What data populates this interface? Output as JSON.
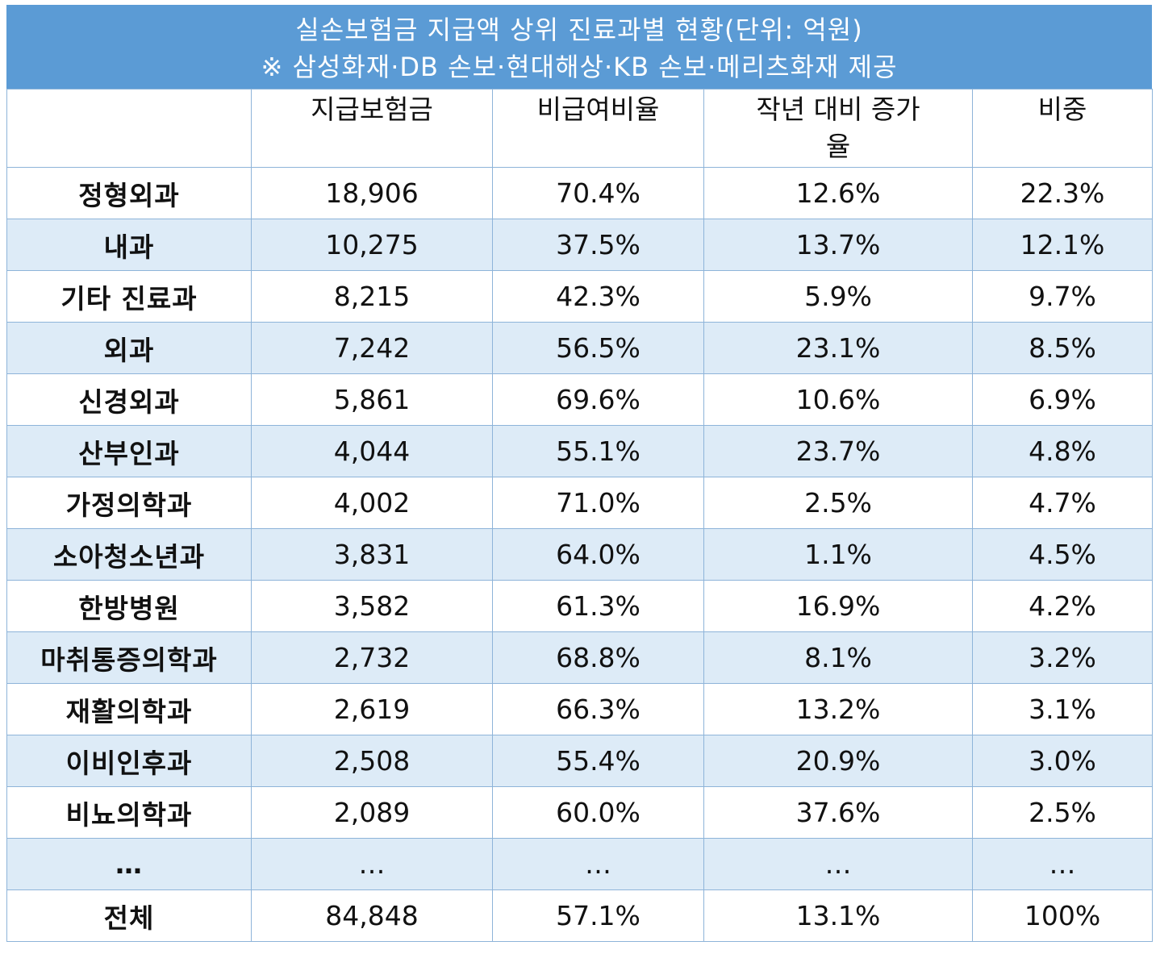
{
  "title": {
    "line1": "실손보험금 지급액 상위 진료과별 현황(단위: 억원)",
    "line2": "※ 삼성화재·DB 손보·현대해상·KB 손보·메리츠화재 제공"
  },
  "colors": {
    "title_band": "#5b9bd5",
    "stripe": "#ddebf7",
    "border": "#8eb4d9"
  },
  "chart_data": {
    "type": "table",
    "title": "실손보험금 지급액 상위 진료과별 현황(단위: 억원)",
    "subtitle": "※ 삼성화재·DB 손보·현대해상·KB 손보·메리츠화재 제공",
    "columns": [
      "",
      "지급보험금",
      "비급여비율",
      "작년 대비 증가율",
      "비중"
    ],
    "rows": [
      [
        "정형외과",
        "18,906",
        "70.4%",
        "12.6%",
        "22.3%"
      ],
      [
        "내과",
        "10,275",
        "37.5%",
        "13.7%",
        "12.1%"
      ],
      [
        "기타 진료과",
        "8,215",
        "42.3%",
        "5.9%",
        "9.7%"
      ],
      [
        "외과",
        "7,242",
        "56.5%",
        "23.1%",
        "8.5%"
      ],
      [
        "신경외과",
        "5,861",
        "69.6%",
        "10.6%",
        "6.9%"
      ],
      [
        "산부인과",
        "4,044",
        "55.1%",
        "23.7%",
        "4.8%"
      ],
      [
        "가정의학과",
        "4,002",
        "71.0%",
        "2.5%",
        "4.7%"
      ],
      [
        "소아청소년과",
        "3,831",
        "64.0%",
        "1.1%",
        "4.5%"
      ],
      [
        "한방병원",
        "3,582",
        "61.3%",
        "16.9%",
        "4.2%"
      ],
      [
        "마취통증의학과",
        "2,732",
        "68.8%",
        "8.1%",
        "3.2%"
      ],
      [
        "재활의학과",
        "2,619",
        "66.3%",
        "13.2%",
        "3.1%"
      ],
      [
        "이비인후과",
        "2,508",
        "55.4%",
        "20.9%",
        "3.0%"
      ],
      [
        "비뇨의학과",
        "2,089",
        "60.0%",
        "37.6%",
        "2.5%"
      ],
      [
        "…",
        "…",
        "…",
        "…",
        "…"
      ],
      [
        "전체",
        "84,848",
        "57.1%",
        "13.1%",
        "100%"
      ]
    ]
  }
}
